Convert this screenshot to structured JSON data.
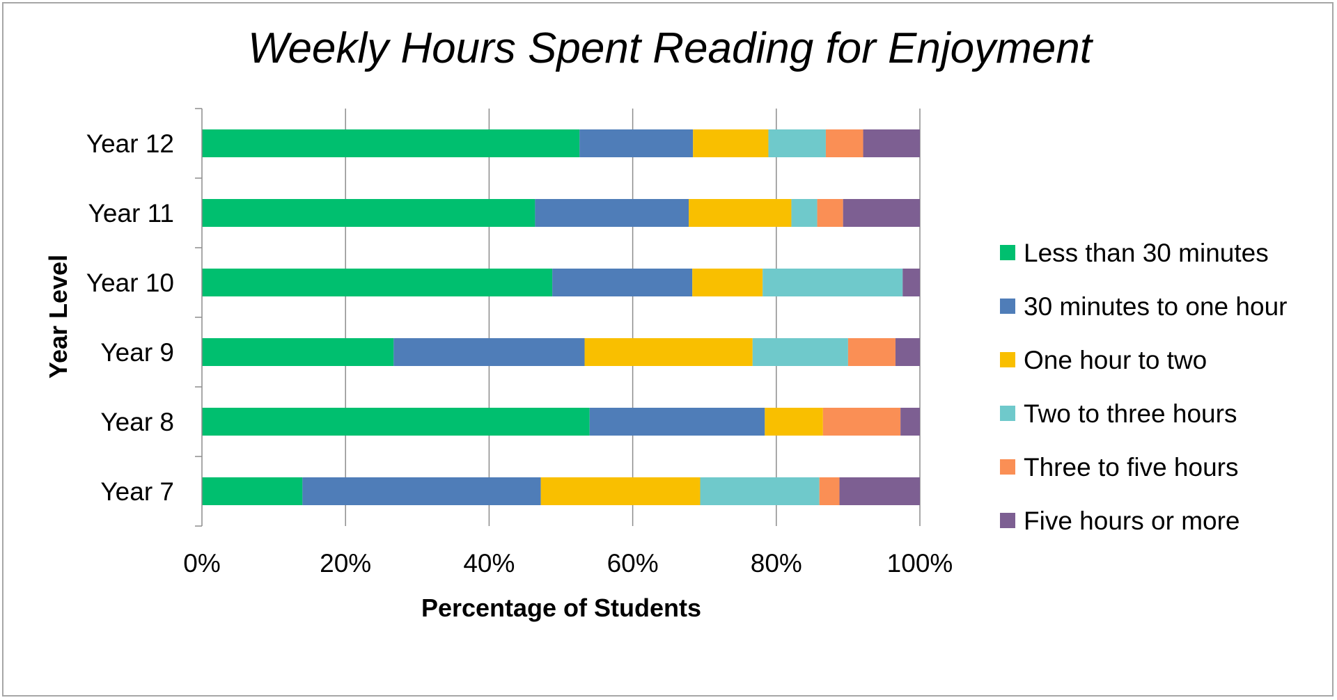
{
  "chart_data": {
    "type": "bar",
    "orientation": "horizontal",
    "stacked": "percent",
    "title": "Weekly Hours Spent Reading for Enjoyment",
    "xlabel": "Percentage of Students",
    "ylabel": "Year Level",
    "xlim": [
      0,
      100
    ],
    "x_ticks": [
      "0%",
      "20%",
      "40%",
      "60%",
      "80%",
      "100%"
    ],
    "x_tick_values": [
      0,
      20,
      40,
      60,
      80,
      100
    ],
    "grid": "vertical",
    "legend_position": "right",
    "categories": [
      "Year 12",
      "Year 11",
      "Year 10",
      "Year 9",
      "Year 8",
      "Year 7"
    ],
    "series": [
      {
        "name": "Less than 30 minutes",
        "color": "#00bf6f",
        "values": [
          52.6,
          46.4,
          48.8,
          26.7,
          54.0,
          14.0
        ]
      },
      {
        "name": "30 minutes to one hour",
        "color": "#4f7db8",
        "values": [
          15.8,
          21.4,
          19.5,
          26.6,
          24.4,
          33.2
        ]
      },
      {
        "name": "One hour to two",
        "color": "#f9bf00",
        "values": [
          10.5,
          14.3,
          9.8,
          23.4,
          8.1,
          22.2
        ]
      },
      {
        "name": "Two to three hours",
        "color": "#6fc9cb",
        "values": [
          8.0,
          3.6,
          19.5,
          13.3,
          0.0,
          16.6
        ]
      },
      {
        "name": "Three to five hours",
        "color": "#fa8f55",
        "values": [
          5.2,
          3.6,
          0.0,
          6.6,
          10.8,
          2.8
        ]
      },
      {
        "name": "Five hours or more",
        "color": "#7d5f92",
        "values": [
          7.9,
          10.7,
          2.4,
          3.4,
          2.7,
          11.2
        ]
      }
    ]
  }
}
